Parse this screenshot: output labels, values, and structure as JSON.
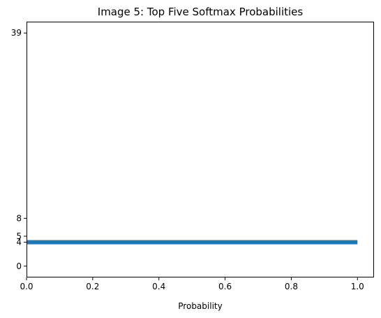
{
  "chart_data": {
    "type": "bar",
    "orientation": "horizontal",
    "title": "Image 5: Top Five Softmax Probabilities",
    "xlabel": "Probability",
    "ylabel": "",
    "xlim": [
      0.0,
      1.05
    ],
    "ylim": [
      -1.9,
      40.9
    ],
    "x_ticks": [
      "0.0",
      "0.2",
      "0.4",
      "0.6",
      "0.8",
      "1.0"
    ],
    "y_ticks": [
      "0",
      "4",
      "5",
      "8",
      "39"
    ],
    "categories": [
      39,
      8,
      5,
      4,
      0
    ],
    "values": [
      0.0,
      0.0,
      0.0,
      1.0,
      0.0
    ],
    "bar_color": "#1f77b4",
    "grid": false,
    "legend": "none"
  }
}
